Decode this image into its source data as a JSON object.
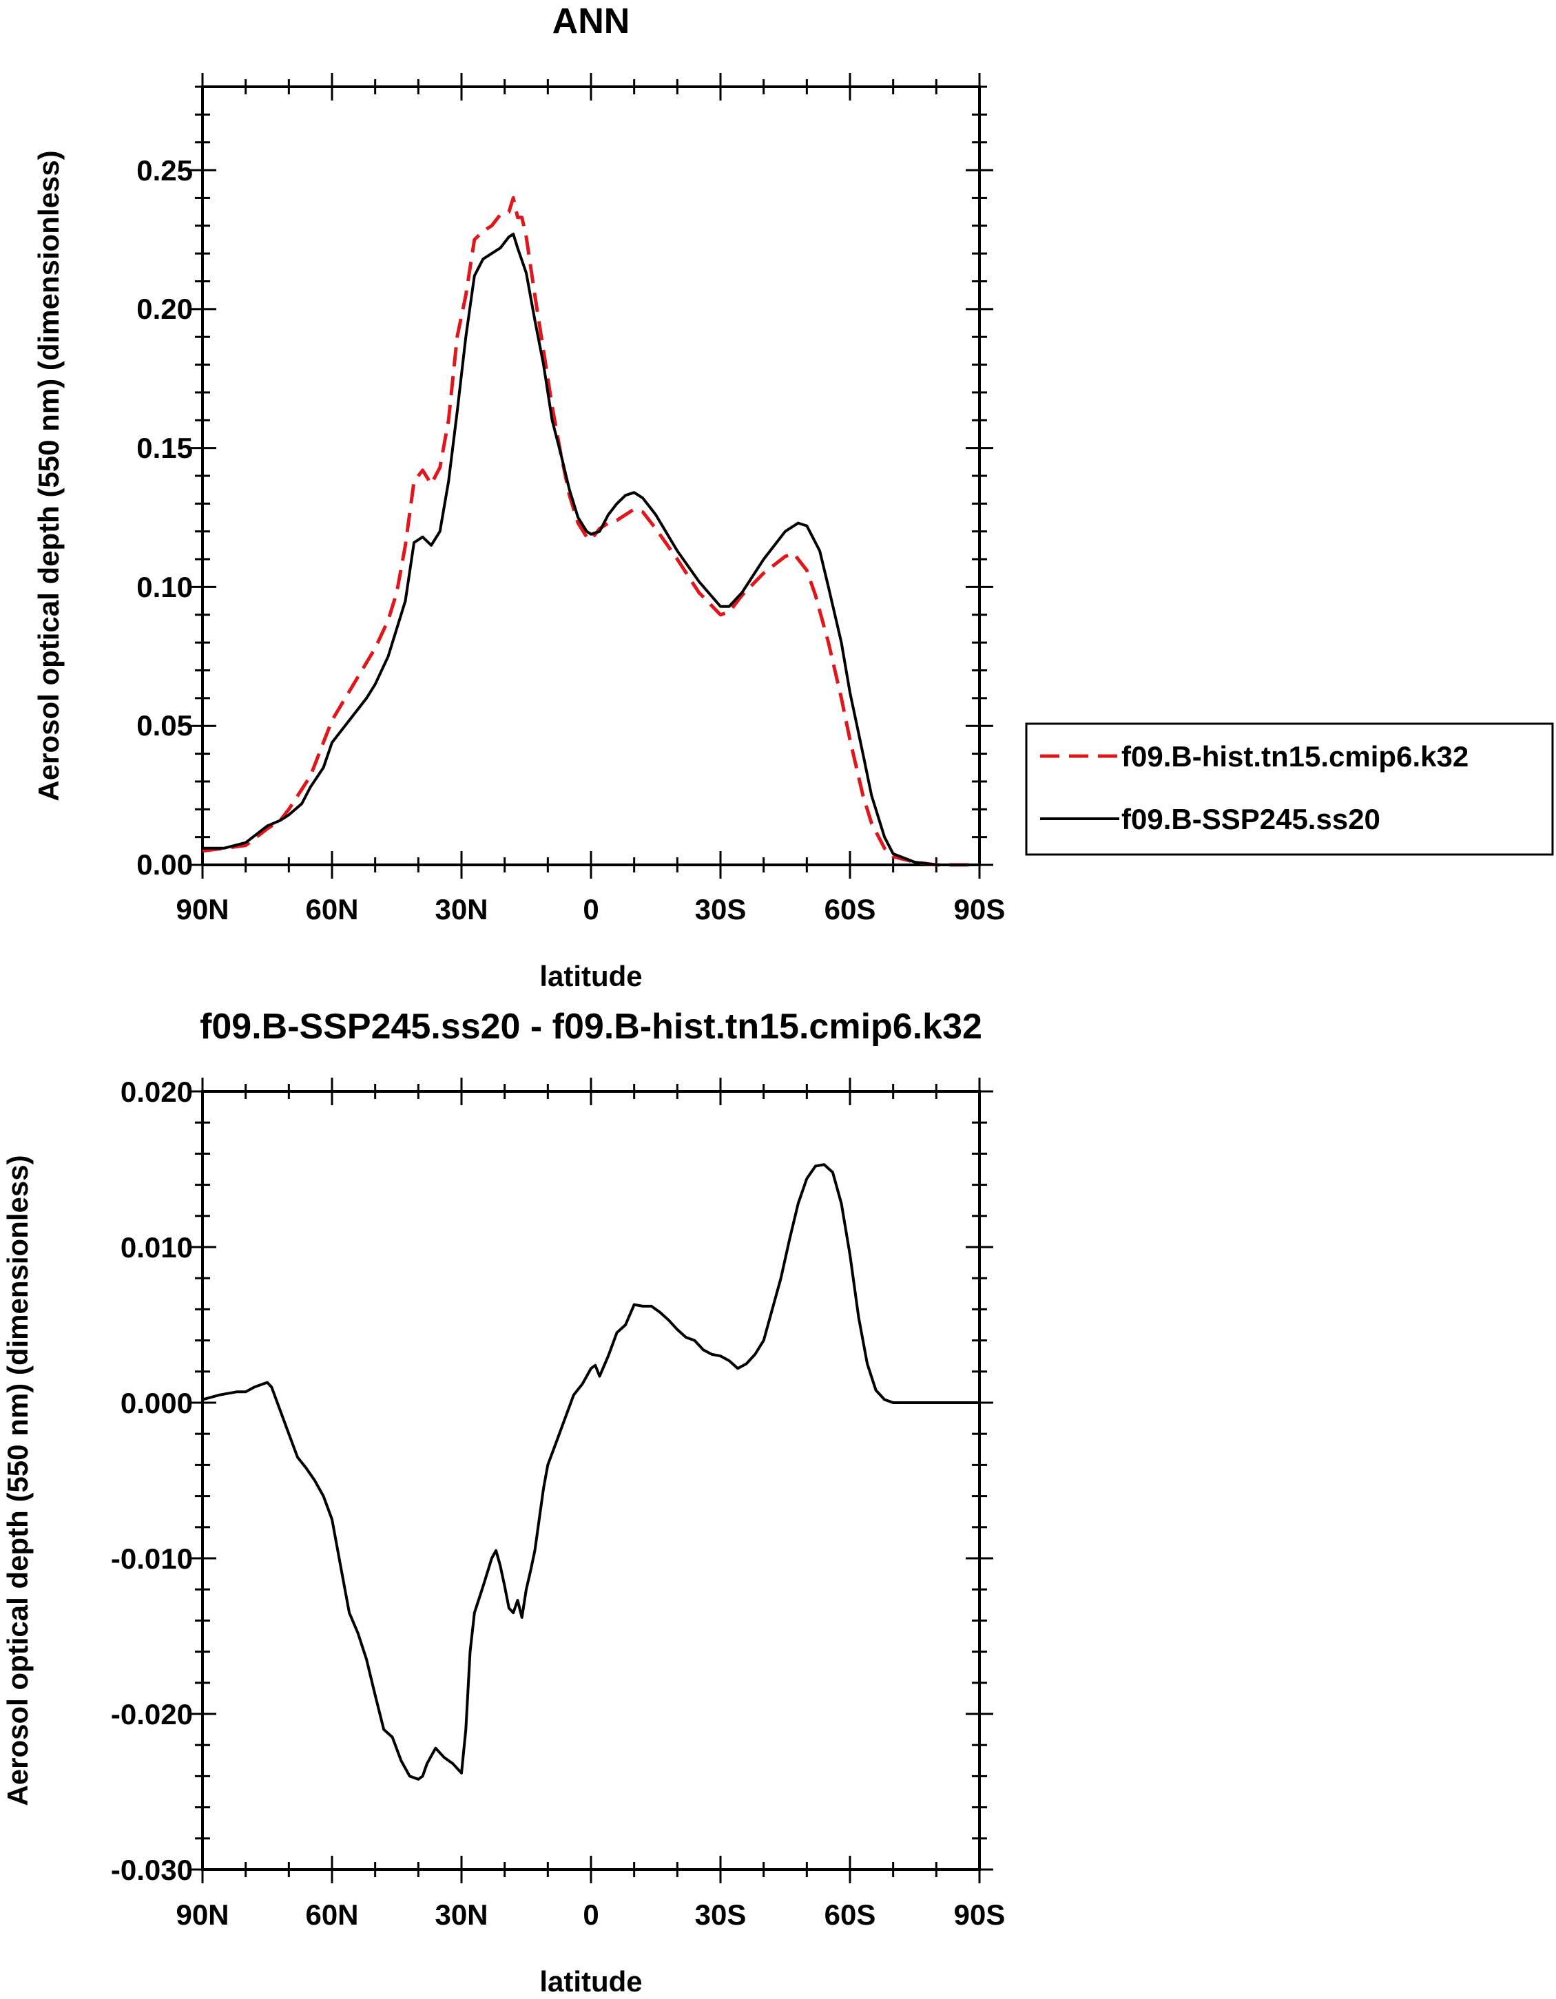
{
  "chart_data": [
    {
      "type": "line",
      "title": "ANN",
      "xlabel": "latitude",
      "ylabel": "Aerosol optical depth (550 nm) (dimensionless)",
      "xlim": [
        90,
        -90
      ],
      "ylim": [
        0.0,
        0.28
      ],
      "xticks": [
        90,
        60,
        30,
        0,
        -30,
        -60,
        -90
      ],
      "xtick_labels": [
        "90N",
        "60N",
        "30N",
        "0",
        "30S",
        "60S",
        "90S"
      ],
      "yticks": [
        0.0,
        0.05,
        0.1,
        0.15,
        0.2,
        0.25
      ],
      "ytick_labels": [
        "0.00",
        "0.05",
        "0.10",
        "0.15",
        "0.20",
        "0.25"
      ],
      "legend": {
        "position": "right"
      },
      "series": [
        {
          "name": "f09.B-hist.tn15.cmip6.k32",
          "color": "#e0161b",
          "dash": "dashed",
          "x": [
            90,
            85,
            80,
            75,
            72,
            70,
            65,
            60,
            55,
            50,
            47,
            45,
            43,
            41,
            39,
            37,
            35,
            33,
            31,
            29,
            27,
            25,
            23,
            21,
            19,
            18,
            17,
            16,
            15,
            13,
            11,
            9,
            7,
            5,
            3,
            1,
            0,
            -2,
            -4,
            -6,
            -8,
            -10,
            -12,
            -15,
            -20,
            -25,
            -30,
            -32,
            -35,
            -40,
            -45,
            -47,
            -50,
            -52,
            -55,
            -58,
            -60,
            -63,
            -65,
            -68,
            -70,
            -75,
            -80,
            -85,
            -90
          ],
          "y": [
            0.005,
            0.006,
            0.007,
            0.013,
            0.016,
            0.02,
            0.032,
            0.052,
            0.065,
            0.078,
            0.088,
            0.098,
            0.115,
            0.138,
            0.142,
            0.137,
            0.143,
            0.16,
            0.19,
            0.205,
            0.225,
            0.228,
            0.23,
            0.234,
            0.235,
            0.24,
            0.233,
            0.233,
            0.226,
            0.205,
            0.185,
            0.165,
            0.148,
            0.133,
            0.123,
            0.118,
            0.117,
            0.121,
            0.123,
            0.124,
            0.126,
            0.128,
            0.127,
            0.121,
            0.11,
            0.098,
            0.09,
            0.091,
            0.097,
            0.105,
            0.111,
            0.112,
            0.106,
            0.097,
            0.08,
            0.06,
            0.045,
            0.025,
            0.015,
            0.006,
            0.003,
            0.001,
            0.0,
            0.0,
            0.0
          ]
        },
        {
          "name": "f09.B-SSP245.ss20",
          "color": "#000000",
          "dash": "solid",
          "x": [
            90,
            85,
            80,
            75,
            72,
            70,
            67,
            65,
            62,
            60,
            57,
            55,
            52,
            50,
            47,
            45,
            43,
            41,
            39,
            37,
            35,
            33,
            31,
            29,
            27,
            25,
            23,
            21,
            19,
            18,
            17,
            15,
            13,
            11,
            9,
            7,
            5,
            3,
            1,
            0,
            -2,
            -4,
            -6,
            -8,
            -10,
            -12,
            -15,
            -20,
            -25,
            -30,
            -32,
            -35,
            -40,
            -45,
            -48,
            -50,
            -53,
            -55,
            -58,
            -60,
            -63,
            -65,
            -68,
            -70,
            -75,
            -80,
            -85,
            -90
          ],
          "y": [
            0.006,
            0.006,
            0.008,
            0.014,
            0.016,
            0.018,
            0.022,
            0.028,
            0.035,
            0.044,
            0.05,
            0.054,
            0.06,
            0.065,
            0.075,
            0.085,
            0.095,
            0.116,
            0.118,
            0.115,
            0.12,
            0.138,
            0.163,
            0.19,
            0.212,
            0.218,
            0.22,
            0.222,
            0.226,
            0.227,
            0.222,
            0.213,
            0.196,
            0.18,
            0.16,
            0.148,
            0.135,
            0.125,
            0.12,
            0.119,
            0.12,
            0.126,
            0.13,
            0.133,
            0.134,
            0.132,
            0.126,
            0.113,
            0.102,
            0.093,
            0.093,
            0.098,
            0.11,
            0.12,
            0.123,
            0.122,
            0.113,
            0.1,
            0.08,
            0.062,
            0.04,
            0.025,
            0.01,
            0.004,
            0.001,
            0.0,
            0.0,
            0.0
          ]
        }
      ]
    },
    {
      "type": "line",
      "title": "f09.B-SSP245.ss20 - f09.B-hist.tn15.cmip6.k32",
      "xlabel": "latitude",
      "ylabel": "Aerosol optical depth (550 nm) (dimensionless)",
      "xlim": [
        90,
        -90
      ],
      "ylim": [
        -0.03,
        0.02
      ],
      "xticks": [
        90,
        60,
        30,
        0,
        -30,
        -60,
        -90
      ],
      "xtick_labels": [
        "90N",
        "60N",
        "30N",
        "0",
        "30S",
        "60S",
        "90S"
      ],
      "yticks": [
        -0.03,
        -0.02,
        -0.01,
        0.0,
        0.01,
        0.02
      ],
      "ytick_labels": [
        "-0.030",
        "-0.020",
        "-0.010",
        "0.000",
        "0.010",
        "0.020"
      ],
      "series": [
        {
          "name": "f09.B-SSP245.ss20 - f09.B-hist.tn15.cmip6.k32",
          "color": "#000000",
          "dash": "solid",
          "x": [
            90,
            86,
            82,
            80,
            78,
            76,
            75,
            74,
            72,
            70,
            68,
            66,
            64,
            62,
            60,
            58,
            56,
            54,
            52,
            50,
            48,
            46,
            44,
            42,
            40,
            39,
            38,
            36,
            34,
            32,
            30,
            29,
            28,
            27,
            25,
            23,
            22,
            21,
            20,
            19,
            18,
            17,
            16,
            15,
            14,
            13,
            12,
            11,
            10,
            8,
            6,
            4,
            2,
            0,
            -1,
            -2,
            -4,
            -6,
            -8,
            -10,
            -12,
            -14,
            -16,
            -18,
            -20,
            -22,
            -24,
            -26,
            -28,
            -30,
            -32,
            -34,
            -36,
            -38,
            -40,
            -42,
            -44,
            -46,
            -48,
            -50,
            -52,
            -54,
            -56,
            -58,
            -60,
            -62,
            -64,
            -66,
            -68,
            -70,
            -72,
            -75,
            -80,
            -85,
            -90
          ],
          "y": [
            0.0002,
            0.0005,
            0.0007,
            0.0007,
            0.001,
            0.0012,
            0.0013,
            0.001,
            -0.0005,
            -0.002,
            -0.0035,
            -0.0042,
            -0.005,
            -0.006,
            -0.0075,
            -0.0105,
            -0.0135,
            -0.0148,
            -0.0165,
            -0.0188,
            -0.021,
            -0.0215,
            -0.023,
            -0.024,
            -0.0242,
            -0.024,
            -0.0232,
            -0.0222,
            -0.0228,
            -0.0232,
            -0.0238,
            -0.021,
            -0.016,
            -0.0135,
            -0.0118,
            -0.01,
            -0.0095,
            -0.0105,
            -0.0118,
            -0.0132,
            -0.0135,
            -0.0127,
            -0.0138,
            -0.012,
            -0.0108,
            -0.0095,
            -0.0075,
            -0.0055,
            -0.004,
            -0.0025,
            -0.001,
            0.0005,
            0.0012,
            0.0022,
            0.0024,
            0.0017,
            0.003,
            0.0045,
            0.005,
            0.0063,
            0.0062,
            0.0062,
            0.0058,
            0.0053,
            0.0047,
            0.0042,
            0.004,
            0.0034,
            0.0031,
            0.003,
            0.0027,
            0.0022,
            0.0025,
            0.0031,
            0.004,
            0.006,
            0.008,
            0.0105,
            0.0128,
            0.0144,
            0.0152,
            0.0153,
            0.0148,
            0.0128,
            0.0095,
            0.0055,
            0.0025,
            0.0008,
            0.0002,
            0.0,
            0.0,
            0.0,
            0.0,
            0.0,
            0.0
          ]
        }
      ]
    }
  ]
}
